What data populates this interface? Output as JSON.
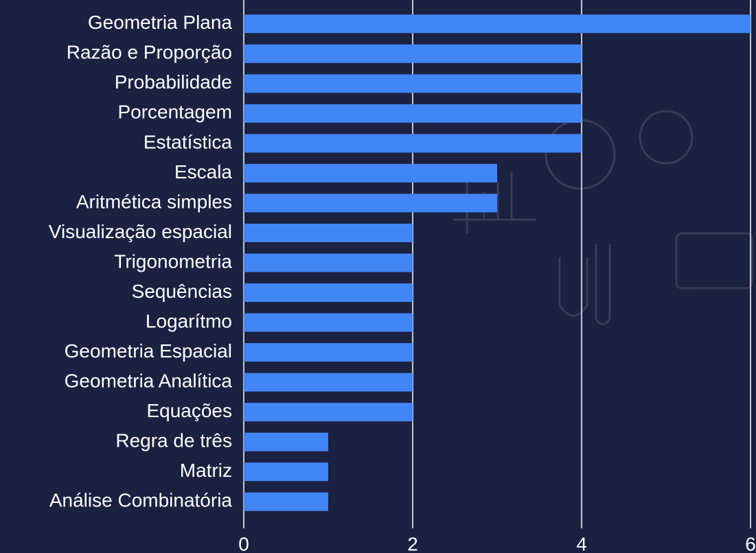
{
  "chart_data": {
    "type": "bar",
    "orientation": "horizontal",
    "categories": [
      "Geometria Plana",
      "Razão e Proporção",
      "Probabilidade",
      "Porcentagem",
      "Estatística",
      "Escala",
      "Aritmética simples",
      "Visualização espacial",
      "Trigonometria",
      "Sequências",
      "Logarítmo",
      "Geometria Espacial",
      "Geometria Analítica",
      "Equações",
      "Regra de três",
      "Matriz",
      "Análise Combinatória"
    ],
    "values": [
      6,
      4,
      4,
      4,
      4,
      3,
      3,
      2,
      2,
      2,
      2,
      2,
      2,
      2,
      1,
      1,
      1
    ],
    "color": "#4285f4",
    "xlim": [
      0,
      6
    ],
    "xticks": [
      0,
      2,
      4,
      6
    ],
    "grid": true
  }
}
